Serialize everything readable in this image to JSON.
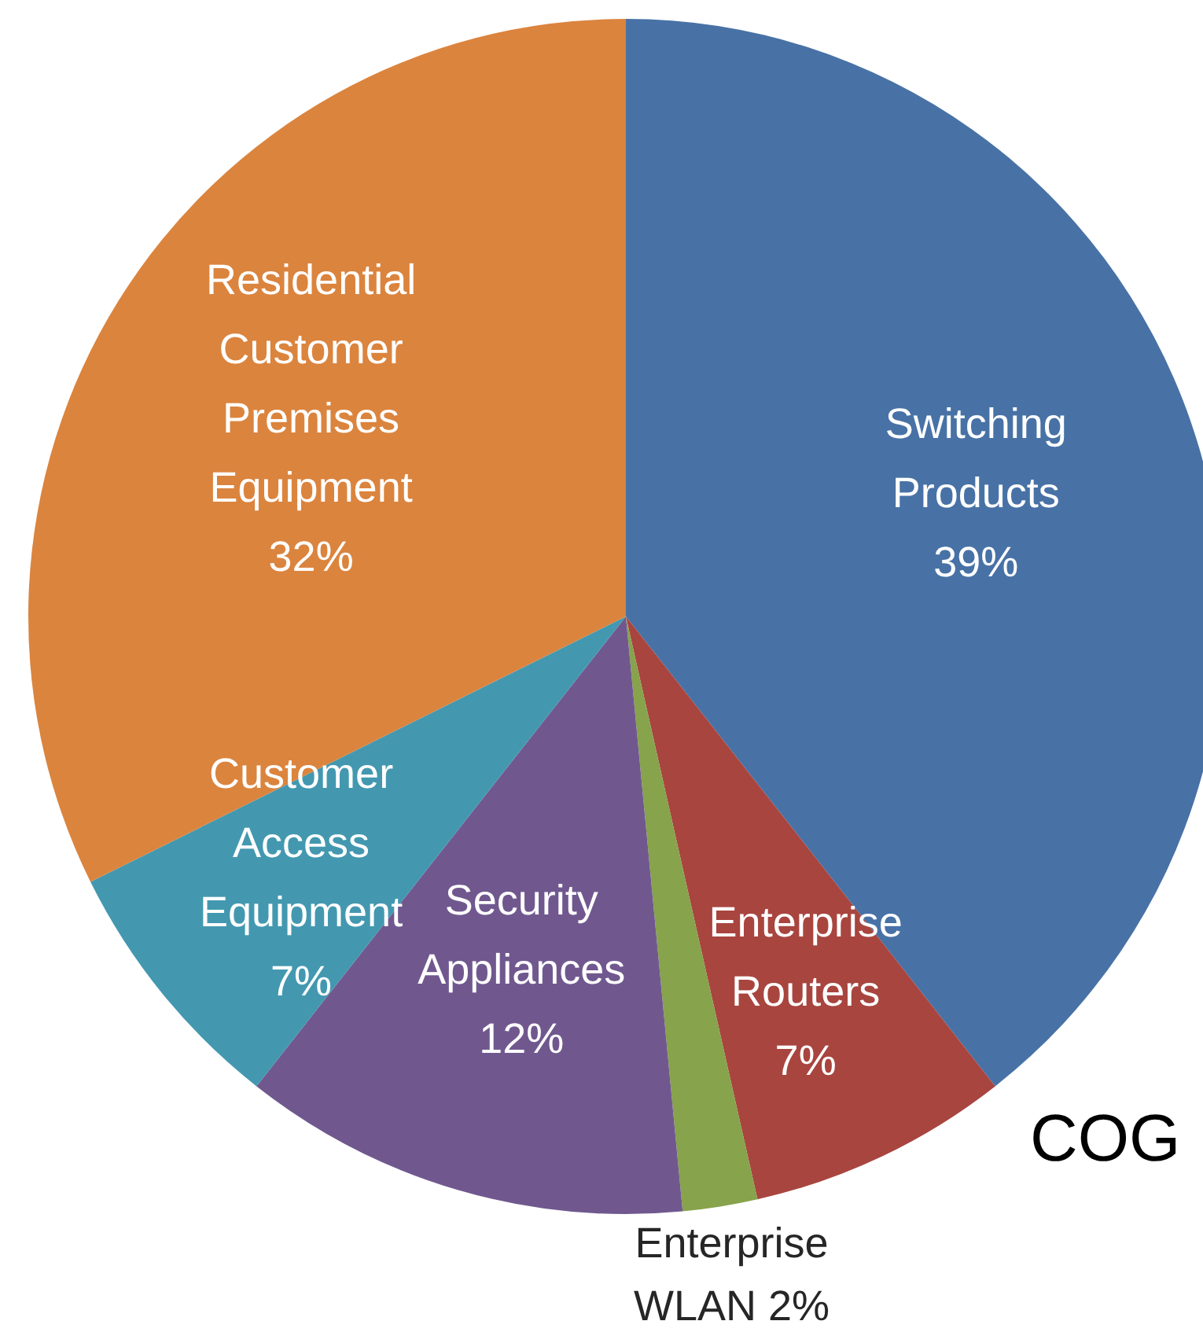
{
  "chart_data": {
    "type": "pie",
    "categories": [
      "Switching Products",
      "Enterprise Routers",
      "Enterprise WLAN",
      "Security Appliances",
      "Customer Access Equipment",
      "Residential Customer Premises Equipment"
    ],
    "values": [
      39,
      7,
      2,
      12,
      7,
      32
    ],
    "colors": [
      "#4872a6",
      "#a8453f",
      "#87a34b",
      "#70588f",
      "#4398b0",
      "#db843e"
    ],
    "value_labels": [
      "39%",
      "7%",
      "2%",
      "12%",
      "7%",
      "32%"
    ],
    "legend": false,
    "annotations": [
      "COG"
    ]
  }
}
